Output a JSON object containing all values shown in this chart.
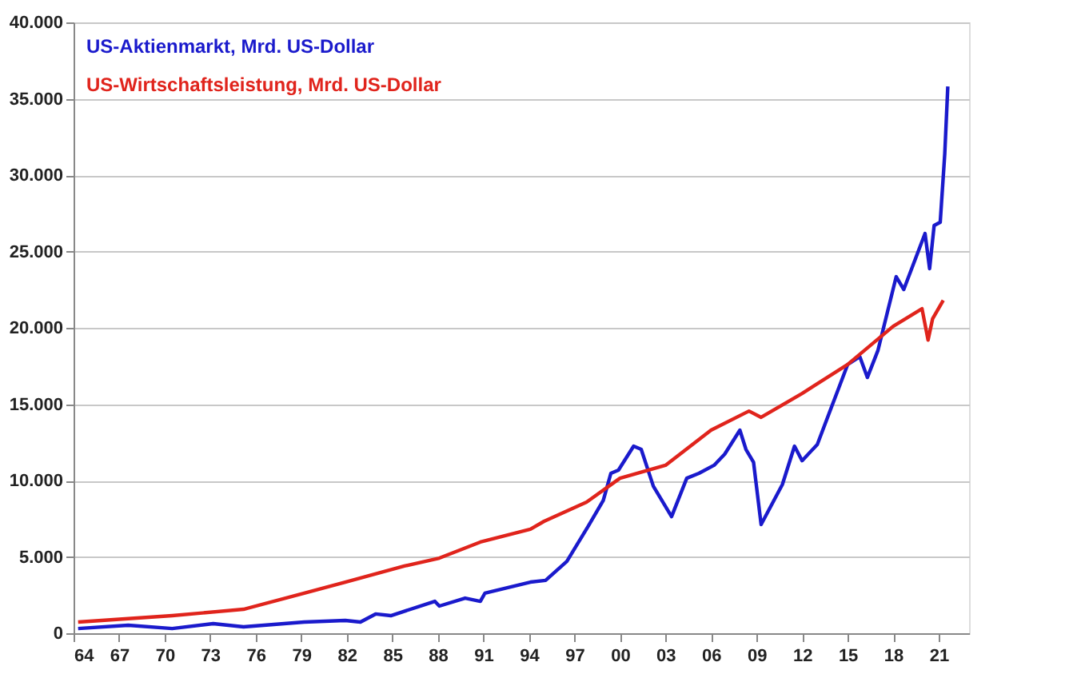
{
  "chart_data": {
    "type": "line",
    "legend": "top left",
    "grid": "y",
    "line_style": "solid",
    "marker": "none",
    "xlim": [
      1964,
      2023
    ],
    "xticks": [
      {
        "value": 1964,
        "label": "64"
      },
      {
        "value": 1967,
        "label": "67"
      },
      {
        "value": 1970,
        "label": "70"
      },
      {
        "value": 1973,
        "label": "73"
      },
      {
        "value": 1976,
        "label": "76"
      },
      {
        "value": 1979,
        "label": "79"
      },
      {
        "value": 1982,
        "label": "82"
      },
      {
        "value": 1985,
        "label": "85"
      },
      {
        "value": 1988,
        "label": "88"
      },
      {
        "value": 1991,
        "label": "91"
      },
      {
        "value": 1994,
        "label": "94"
      },
      {
        "value": 1997,
        "label": "97"
      },
      {
        "value": 2000,
        "label": "00"
      },
      {
        "value": 2003,
        "label": "03"
      },
      {
        "value": 2006,
        "label": "06"
      },
      {
        "value": 2009,
        "label": "09"
      },
      {
        "value": 2012,
        "label": "12"
      },
      {
        "value": 2015,
        "label": "15"
      },
      {
        "value": 2018,
        "label": "18"
      },
      {
        "value": 2021,
        "label": "21"
      }
    ],
    "ylim": [
      0,
      40000
    ],
    "yticks": [
      {
        "value": 0,
        "label": "0"
      },
      {
        "value": 5000,
        "label": "5.000"
      },
      {
        "value": 10000,
        "label": "10.000"
      },
      {
        "value": 15000,
        "label": "15.000"
      },
      {
        "value": 20000,
        "label": "20.000"
      },
      {
        "value": 25000,
        "label": "25.000"
      },
      {
        "value": 30000,
        "label": "30.000"
      },
      {
        "value": 35000,
        "label": "35.000"
      },
      {
        "value": 40000,
        "label": "40.000"
      }
    ],
    "series": [
      {
        "name": "US-Aktienmarkt, Mrd. US-Dollar",
        "color": "#1a1acc",
        "x": [
          1964.3,
          1967.6,
          1970.5,
          1973.2,
          1975.2,
          1979.2,
          1981.9,
          1982.9,
          1983.9,
          1984.9,
          1987.8,
          1988.1,
          1989.8,
          1990.8,
          1991.1,
          1994.1,
          1995.1,
          1996.5,
          1997.9,
          1998.9,
          1999.4,
          1999.9,
          2000.9,
          2001.4,
          2002.2,
          2003.4,
          2004.4,
          2005.2,
          2006.2,
          2006.9,
          2007.9,
          2008.3,
          2008.8,
          2009.3,
          2010.7,
          2011.5,
          2012,
          2013,
          2014.2,
          2015,
          2015.8,
          2016.3,
          2017,
          2018.2,
          2018.7,
          2019.3,
          2020.1,
          2020.4,
          2020.7,
          2021.1,
          2021.4,
          2021.6
        ],
        "values": [
          310,
          520,
          310,
          630,
          420,
          730,
          840,
          730,
          1260,
          1150,
          2090,
          1780,
          2300,
          2090,
          2620,
          3350,
          3460,
          4700,
          7000,
          8700,
          10470,
          10680,
          12250,
          12040,
          9630,
          7640,
          10150,
          10470,
          11000,
          11730,
          13300,
          12040,
          11200,
          7120,
          9740,
          12250,
          11300,
          12360,
          15500,
          17590,
          18110,
          16750,
          18530,
          23350,
          22510,
          24080,
          26180,
          23870,
          26700,
          26910,
          31400,
          35800
        ]
      },
      {
        "name": "US-Wirtschaftsleistung, Mrd. US-Dollar",
        "color": "#e0241c",
        "x": [
          1964.3,
          1970.5,
          1975.2,
          1979.2,
          1981.9,
          1985.8,
          1988.1,
          1990.8,
          1994.1,
          1995,
          1997.8,
          2000,
          2003,
          2006,
          2008.5,
          2009.3,
          2012,
          2015,
          2018,
          2019.9,
          2020.3,
          2020.6,
          2021.3
        ],
        "values": [
          730,
          1150,
          1570,
          2620,
          3350,
          4400,
          4920,
          5970,
          6810,
          7330,
          8590,
          10150,
          11000,
          13300,
          14550,
          14140,
          15700,
          17600,
          20100,
          21250,
          19200,
          20600,
          21800
        ]
      }
    ]
  }
}
